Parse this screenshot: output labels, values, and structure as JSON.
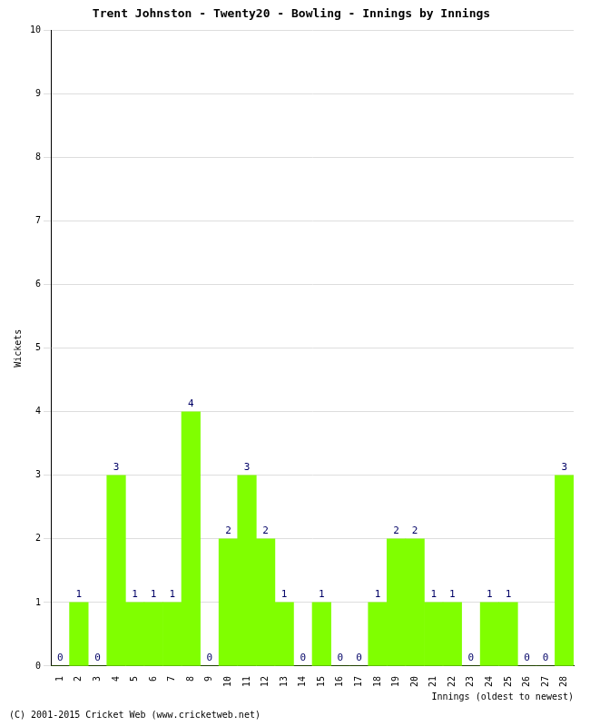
{
  "chart_data": {
    "type": "bar",
    "title": "Trent Johnston - Twenty20 - Bowling - Innings by Innings",
    "x_label": "Innings (oldest to newest)",
    "y_label": "Wickets",
    "footer": "(C) 2001-2015 Cricket Web (www.cricketweb.net)",
    "categories": [
      "1",
      "2",
      "3",
      "4",
      "5",
      "6",
      "7",
      "8",
      "9",
      "10",
      "11",
      "12",
      "13",
      "14",
      "15",
      "16",
      "17",
      "18",
      "19",
      "20",
      "21",
      "22",
      "23",
      "24",
      "25",
      "26",
      "27",
      "28"
    ],
    "values": [
      0,
      1,
      0,
      3,
      1,
      1,
      1,
      4,
      0,
      2,
      3,
      2,
      1,
      0,
      1,
      0,
      0,
      1,
      2,
      2,
      1,
      1,
      0,
      1,
      1,
      0,
      0,
      3
    ],
    "color": "#80ff00",
    "ylim": [
      0,
      10
    ],
    "yticks": [
      0,
      1,
      2,
      3,
      4,
      5,
      6,
      7,
      8,
      9,
      10
    ],
    "grid": true,
    "data_labels": true
  }
}
